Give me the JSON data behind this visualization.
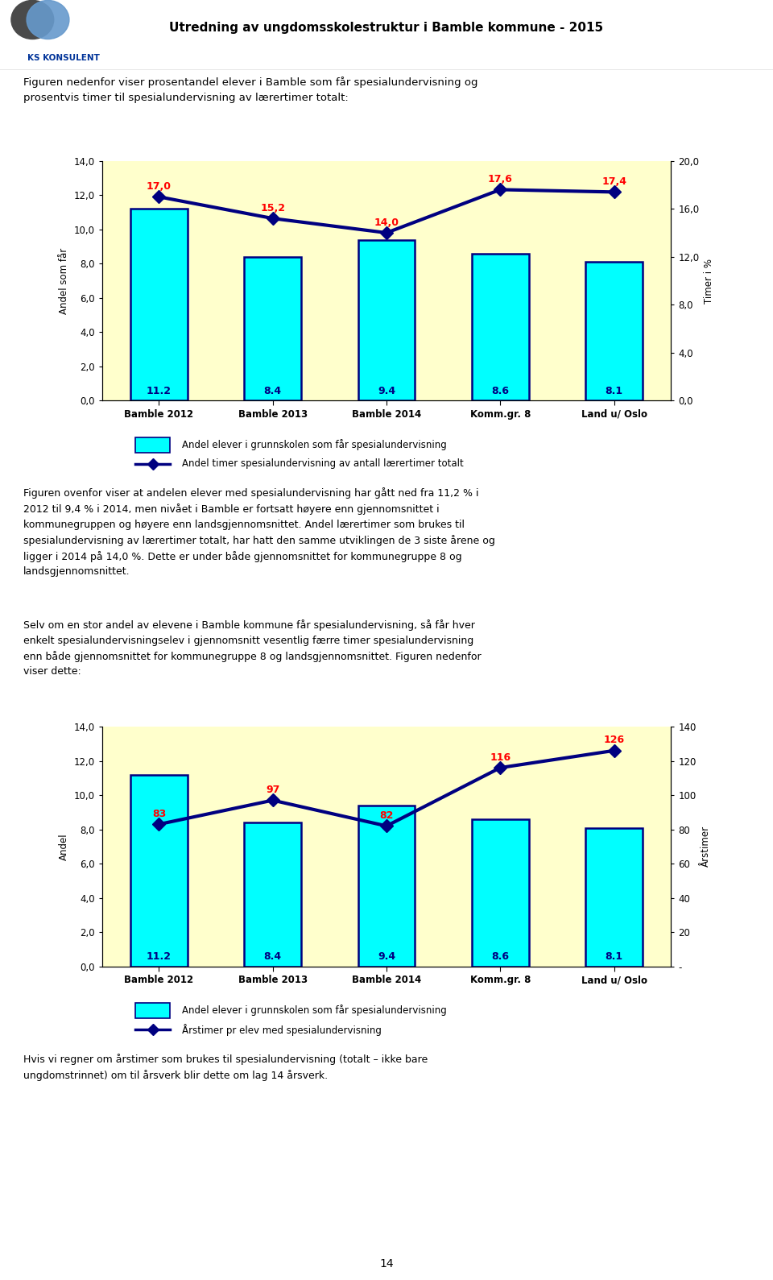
{
  "header_title": "Utredning av ungdomsskolestruktur i Bamble kommune - 2015",
  "intro_text1": "Figuren nedenfor viser prosentandel elever i Bamble som får spesialundervisning og\nprosentvis timer til spesialundervisning av lærertimer totalt:",
  "chart1": {
    "categories": [
      "Bamble 2012",
      "Bamble 2013",
      "Bamble 2014",
      "Komm.gr. 8",
      "Land u/ Oslo"
    ],
    "bar_values": [
      11.2,
      8.4,
      9.4,
      8.6,
      8.1
    ],
    "line_values": [
      17.0,
      15.2,
      14.0,
      17.6,
      17.4
    ],
    "bar_color": "#00FFFF",
    "bar_edgecolor": "#000080",
    "line_color": "#000080",
    "bar_label_color": "#000080",
    "line_label_color": "#FF0000",
    "ylabel_left": "Andel som får",
    "ylabel_right": "Timer i %",
    "ylim_left": [
      0.0,
      14.0
    ],
    "ylim_right": [
      0.0,
      20.0
    ],
    "yticks_left": [
      0.0,
      2.0,
      4.0,
      6.0,
      8.0,
      10.0,
      12.0,
      14.0
    ],
    "yticks_right": [
      0.0,
      4.0,
      8.0,
      12.0,
      16.0,
      20.0
    ],
    "background_color": "#FFFFCC",
    "legend1_bar": "Andel elever i grunnskolen som får spesialundervisning",
    "legend1_line": "Andel timer spesialundervisning av antall lærertimer totalt"
  },
  "middle_text": "Figuren ovenfor viser at andelen elever med spesialundervisning har gått ned fra 11,2 % i\n2012 til 9,4 % i 2014, men nivået i Bamble er fortsatt høyere enn gjennomsnittet i\nkommunegruppen og høyere enn landsgjennomsnittet. Andel lærertimer som brukes til\nspesialundervisning av lærertimer totalt, har hatt den samme utviklingen de 3 siste årene og\nligger i 2014 på 14,0 %. Dette er under både gjennomsnittet for kommunegruppe 8 og\nlandsgjennomsnittet.",
  "intro_text2": "Selv om en stor andel av elevene i Bamble kommune får spesialundervisning, så får hver\nenkelt spesialundervisningselev i gjennomsnitt vesentlig færre timer spesialundervisning\nenn både gjennomsnittet for kommunegruppe 8 og landsgjennomsnittet. Figuren nedenfor\nviser dette:",
  "chart2": {
    "categories": [
      "Bamble 2012",
      "Bamble 2013",
      "Bamble 2014",
      "Komm.gr. 8",
      "Land u/ Oslo"
    ],
    "bar_values": [
      11.2,
      8.4,
      9.4,
      8.6,
      8.1
    ],
    "line_values": [
      83,
      97,
      82,
      116,
      126
    ],
    "bar_color": "#00FFFF",
    "bar_edgecolor": "#000080",
    "line_color": "#000080",
    "bar_label_color": "#000080",
    "line_label_color": "#FF0000",
    "ylabel_left": "Andel",
    "ylabel_right": "Årstimer",
    "ylim_left": [
      0.0,
      14.0
    ],
    "ylim_right": [
      0,
      140
    ],
    "yticks_left": [
      0.0,
      2.0,
      4.0,
      6.0,
      8.0,
      10.0,
      12.0,
      14.0
    ],
    "yticks_right": [
      0,
      20,
      40,
      60,
      80,
      100,
      120,
      140
    ],
    "background_color": "#FFFFCC",
    "legend2_bar": "Andel elever i grunnskolen som får spesialundervisning",
    "legend2_line": "Årstimer pr elev med spesialundervisning"
  },
  "footer_text": "Hvis vi regner om årstimer som brukes til spesialundervisning (totalt – ikke bare\nungdomstrinnet) om til årsverk blir dette om lag 14 årsverk.",
  "page_number": "14",
  "fig_width": 9.6,
  "fig_height": 15.89
}
